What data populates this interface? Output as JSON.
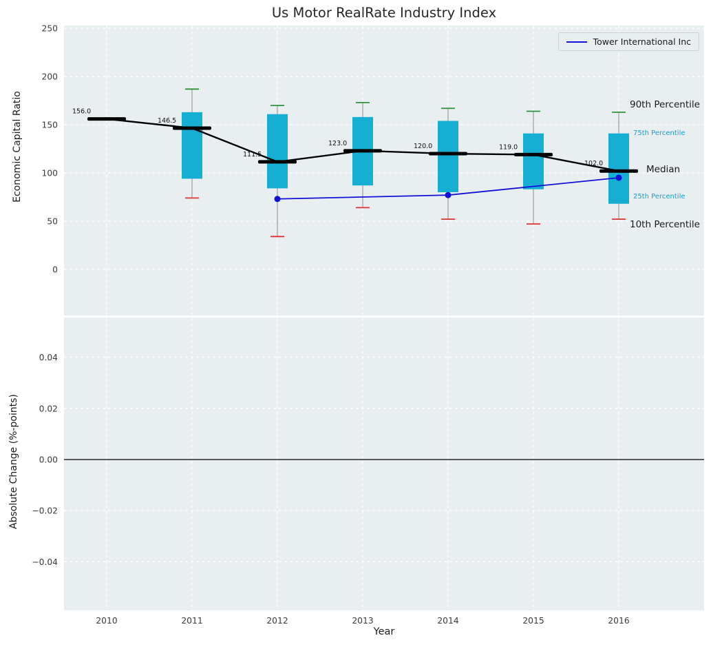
{
  "figure": {
    "background": "#ffffff",
    "axes_background": "#e9eef1",
    "grid_color": "#ffffff"
  },
  "chart_data": [
    {
      "type": "bar",
      "subtype": "boxplot-with-median-line",
      "title": "Us Motor RealRate Industry Index",
      "ylabel": "Economic Capital Ratio",
      "xlabel": "",
      "xlim": [
        2009.5,
        2017.0
      ],
      "ylim": [
        -48,
        253
      ],
      "grid": true,
      "legend_position": "upper right",
      "yticks": [
        0,
        50,
        100,
        150,
        200,
        250
      ],
      "ytick_labels": [
        "0",
        "50",
        "100",
        "150",
        "200",
        "250"
      ],
      "xticks": [
        2010,
        2011,
        2012,
        2013,
        2014,
        2015,
        2016
      ],
      "colors": {
        "box": "#17aed4",
        "median_bar": "#000000",
        "median_line": "#000000",
        "whisker": "#8a8a8a",
        "cap_top": "#2e9238",
        "cap_bottom": "#e03131",
        "company_line": "#1010d8",
        "percentile_label": "#189ec7",
        "annotation_text": "#1a1a1a"
      },
      "years": [
        2010,
        2011,
        2012,
        2013,
        2014,
        2015,
        2016
      ],
      "medians": [
        156.0,
        146.5,
        111.5,
        123.0,
        120.0,
        119.0,
        102.0
      ],
      "median_labels": [
        "156.0",
        "146.5",
        "111.5",
        "123.0",
        "120.0",
        "119.0",
        "102.0"
      ],
      "boxes": [
        {
          "year": 2011,
          "q1": 94,
          "q3": 163,
          "p10": 74,
          "p90": 187
        },
        {
          "year": 2012,
          "q1": 84,
          "q3": 161,
          "p10": 34,
          "p90": 170
        },
        {
          "year": 2013,
          "q1": 87,
          "q3": 158,
          "p10": 64,
          "p90": 173
        },
        {
          "year": 2014,
          "q1": 80,
          "q3": 154,
          "p10": 52,
          "p90": 167
        },
        {
          "year": 2015,
          "q1": 83,
          "q3": 141,
          "p10": 47,
          "p90": 164
        },
        {
          "year": 2016,
          "q1": 68,
          "q3": 141,
          "p10": 52,
          "p90": 163
        }
      ],
      "company_series": {
        "name": "Tower International Inc",
        "x": [
          2012,
          2014,
          2016
        ],
        "y": [
          73,
          77,
          95
        ]
      },
      "annotations": [
        {
          "text": "90th Percentile",
          "value": 170,
          "style": "large",
          "color": "#1a1a1a",
          "dx": 16
        },
        {
          "text": "75th Percentile",
          "value": 141,
          "style": "small",
          "color": "#189ec7",
          "dx": 21
        },
        {
          "text": "Median",
          "value": 103,
          "style": "large",
          "color": "#1a1a1a",
          "dx": 40
        },
        {
          "text": "25th Percentile",
          "value": 75,
          "style": "small",
          "color": "#189ec7",
          "dx": 21
        },
        {
          "text": "10th Percentile",
          "value": 46,
          "style": "large",
          "color": "#1a1a1a",
          "dx": 16
        }
      ]
    },
    {
      "type": "line",
      "title": "",
      "ylabel": "Absolute Change (%-points)",
      "xlabel": "Year",
      "xlim": [
        2009.5,
        2017.0
      ],
      "ylim": [
        -0.059,
        0.0555
      ],
      "grid": true,
      "zero_line": true,
      "yticks": [
        -0.04,
        -0.02,
        0,
        0.02,
        0.04
      ],
      "ytick_labels": [
        "−0.04",
        "−0.02",
        "0.00",
        "0.02",
        "0.04"
      ],
      "xticks": [
        2010,
        2011,
        2012,
        2013,
        2014,
        2015,
        2016
      ],
      "xtick_labels": [
        "2010",
        "2011",
        "2012",
        "2013",
        "2014",
        "2015",
        "2016"
      ],
      "series": []
    }
  ]
}
